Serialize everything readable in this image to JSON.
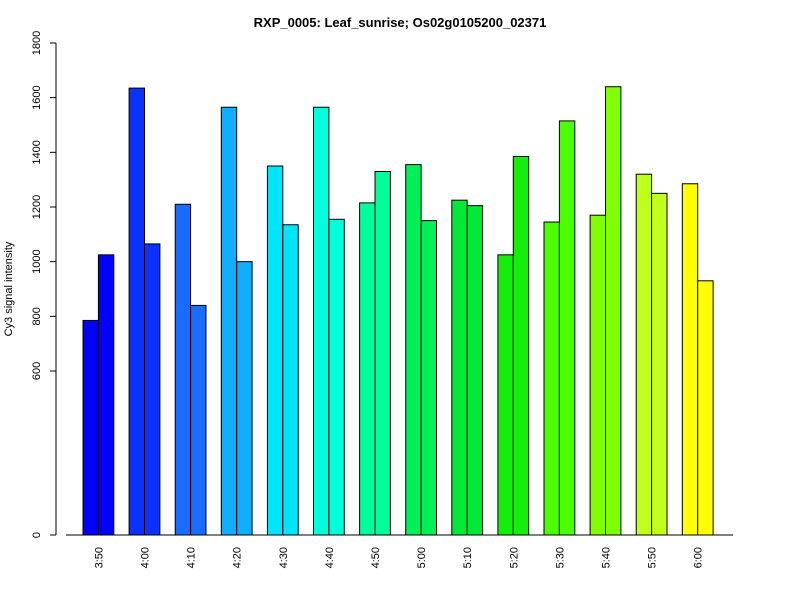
{
  "chart_data": {
    "type": "bar",
    "title": "RXP_0005: Leaf_sunrise; Os02g0105200_02371",
    "xlabel": "",
    "ylabel": "Cy3 signal intensity",
    "ylim": [
      0,
      1800
    ],
    "y_ticks": [
      0,
      600,
      800,
      1000,
      1200,
      1400,
      1600,
      1800
    ],
    "y_tick_labels": [
      "0",
      "600",
      "800",
      "1000",
      "1200",
      "1400",
      "1600",
      "1800"
    ],
    "y_scale_note": "non-linear axis as printed (0 at base, 600-1800 evenly spaced)",
    "categories": [
      "3:50",
      "4:00",
      "4:10",
      "4:20",
      "4:30",
      "4:40",
      "4:50",
      "5:00",
      "5:10",
      "5:20",
      "5:30",
      "5:40",
      "5:50",
      "6:00"
    ],
    "bars_per_category": 2,
    "values": [
      [
        785,
        1025
      ],
      [
        1635,
        1065
      ],
      [
        1210,
        840
      ],
      [
        1565,
        1000
      ],
      [
        1350,
        1135
      ],
      [
        1565,
        1155
      ],
      [
        1215,
        1330
      ],
      [
        1355,
        1150
      ],
      [
        1225,
        1205
      ],
      [
        1025,
        1385
      ],
      [
        1145,
        1515
      ],
      [
        1170,
        1640
      ],
      [
        1320,
        1250
      ],
      [
        1285,
        930
      ]
    ],
    "colors": [
      "#0000FF",
      "#0B31FF",
      "#1A6BFF",
      "#11AEFF",
      "#00E5FF",
      "#00FFDA",
      "#00FF9C",
      "#00F05A",
      "#00E838",
      "#13EE0B",
      "#4CFF00",
      "#7FFF00",
      "#BFFF1A",
      "#FFFF00"
    ],
    "grid": false,
    "legend": "none"
  }
}
